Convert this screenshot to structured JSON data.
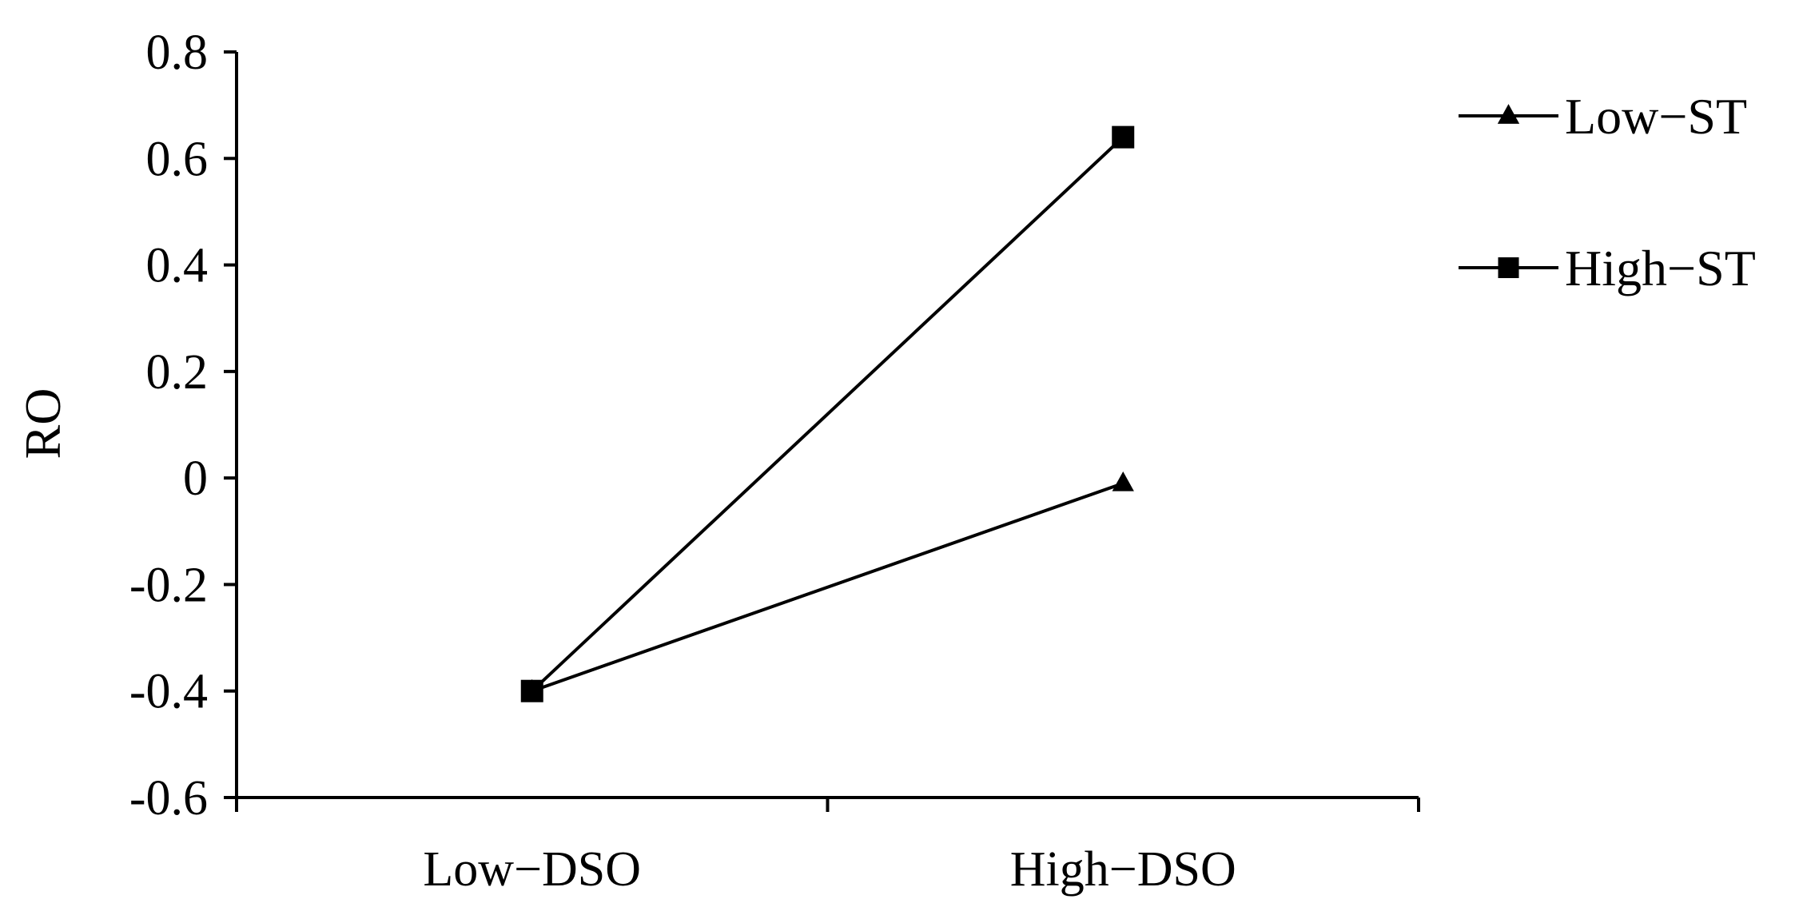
{
  "chart_data": {
    "type": "line",
    "title": "",
    "xlabel": "",
    "ylabel": "RO",
    "categories": [
      "Low−DSO",
      "High−DSO"
    ],
    "ylim": [
      -0.6,
      0.8
    ],
    "yticks": [
      "0.8",
      "0.6",
      "0.4",
      "0.2",
      "0",
      "-0.2",
      "-0.4",
      "-0.6"
    ],
    "ytick_values": [
      0.8,
      0.6,
      0.4,
      0.2,
      0,
      -0.2,
      -0.4,
      -0.6
    ],
    "grid": false,
    "legend_position": "top-right",
    "series": [
      {
        "name": "Low−ST",
        "marker": "triangle",
        "values": [
          -0.4,
          -0.01
        ]
      },
      {
        "name": "High−ST",
        "marker": "square",
        "values": [
          -0.4,
          0.64
        ]
      }
    ],
    "colors": {
      "line": "#000000",
      "marker": "#000000",
      "axis": "#000000"
    }
  }
}
